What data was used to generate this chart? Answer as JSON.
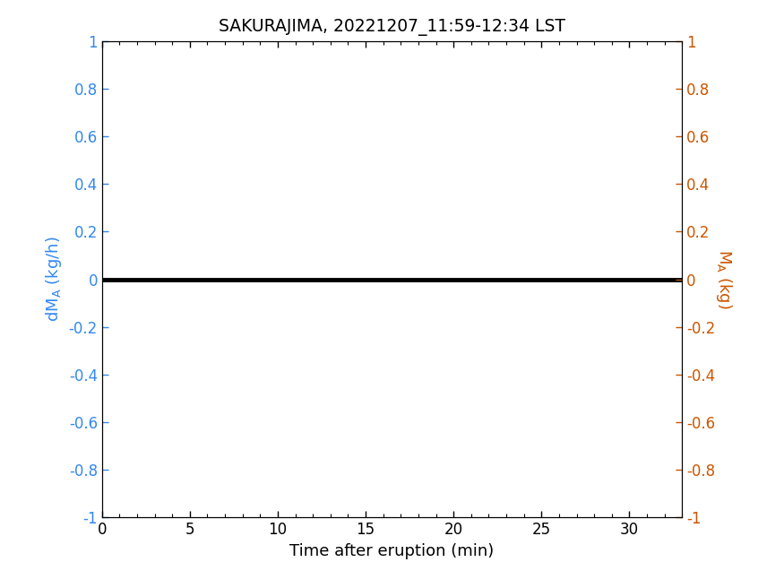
{
  "title": "SAKURAJIMA, 20221207_11:59-12:34 LST",
  "title_fontsize": 13.5,
  "xlabel": "Time after eruption (min)",
  "ylabel_left": "dM_A (kg/h)",
  "ylabel_right": "M_A (kg)",
  "xlim": [
    0,
    33
  ],
  "ylim": [
    -1,
    1
  ],
  "xticks": [
    0,
    5,
    10,
    15,
    20,
    25,
    30
  ],
  "yticks": [
    -1,
    -0.8,
    -0.6,
    -0.4,
    -0.2,
    0,
    0.2,
    0.4,
    0.6,
    0.8,
    1
  ],
  "left_color": "#3388EE",
  "right_color": "#CC5500",
  "line_color": "#000000",
  "line_width": 3.5,
  "x_data": [
    0,
    33
  ],
  "y_data": [
    0,
    0
  ],
  "background_color": "#ffffff",
  "xlabel_fontsize": 13,
  "ylabel_fontsize": 13,
  "tick_fontsize": 12
}
